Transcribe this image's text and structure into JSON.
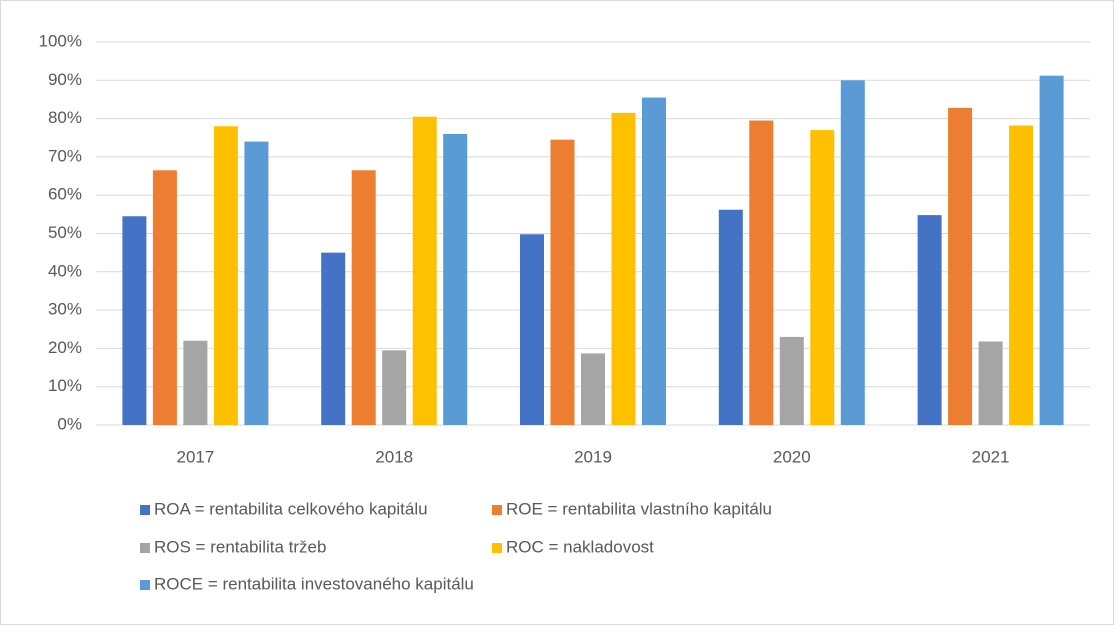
{
  "chart_data": {
    "type": "bar",
    "categories": [
      "2017",
      "2018",
      "2019",
      "2020",
      "2021"
    ],
    "series": [
      {
        "name": "ROA = rentabilita celkového kapitálu",
        "color": "#4472c4",
        "values": [
          54.5,
          45,
          49.8,
          56.2,
          54.8
        ]
      },
      {
        "name": "ROE = rentabilita vlastního kapitálu",
        "color": "#ed7d31",
        "values": [
          66.5,
          66.5,
          74.5,
          79.5,
          82.8
        ]
      },
      {
        "name": "ROS = rentabilita tržeb",
        "color": "#a5a5a5",
        "values": [
          22,
          19.5,
          18.7,
          23,
          21.8
        ]
      },
      {
        "name": "ROC = nakladovost",
        "color": "#ffc000",
        "values": [
          78,
          80.5,
          81.5,
          77,
          78.2
        ]
      },
      {
        "name": "ROCE = rentabilita investovaného kapitálu",
        "color": "#5b9bd5",
        "values": [
          74,
          76,
          85.5,
          90,
          91.2
        ]
      }
    ],
    "ylim": [
      0,
      100
    ],
    "yticks": [
      {
        "value": 0,
        "label": "0%"
      },
      {
        "value": 10,
        "label": "10%"
      },
      {
        "value": 20,
        "label": "20%"
      },
      {
        "value": 30,
        "label": "30%"
      },
      {
        "value": 40,
        "label": "40%"
      },
      {
        "value": 50,
        "label": "50%"
      },
      {
        "value": 60,
        "label": "60%"
      },
      {
        "value": 70,
        "label": "70%"
      },
      {
        "value": 80,
        "label": "80%"
      },
      {
        "value": 90,
        "label": "90%"
      },
      {
        "value": 100,
        "label": "100%"
      }
    ],
    "grid": true,
    "legend": "bottom"
  }
}
